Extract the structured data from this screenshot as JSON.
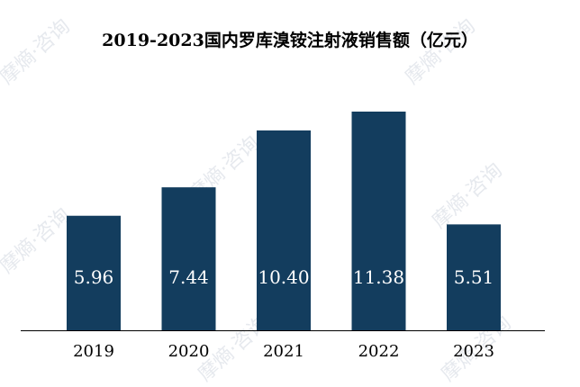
{
  "chart_data": {
    "type": "bar",
    "title": "2019-2023国内罗库溴铵注射液销售额（亿元）",
    "categories": [
      "2019",
      "2020",
      "2021",
      "2022",
      "2023"
    ],
    "values": [
      5.96,
      7.44,
      10.4,
      11.38,
      5.51
    ],
    "value_labels": [
      "5.96",
      "7.44",
      "10.40",
      "11.38",
      "5.51"
    ],
    "xlabel": "",
    "ylabel": "",
    "ylim": [
      0,
      11.38
    ],
    "grid": false,
    "legend": "none",
    "bar_color": "#133d5e",
    "label_color": "#ffffff"
  },
  "watermark": {
    "text": "摩熵·咨询"
  }
}
